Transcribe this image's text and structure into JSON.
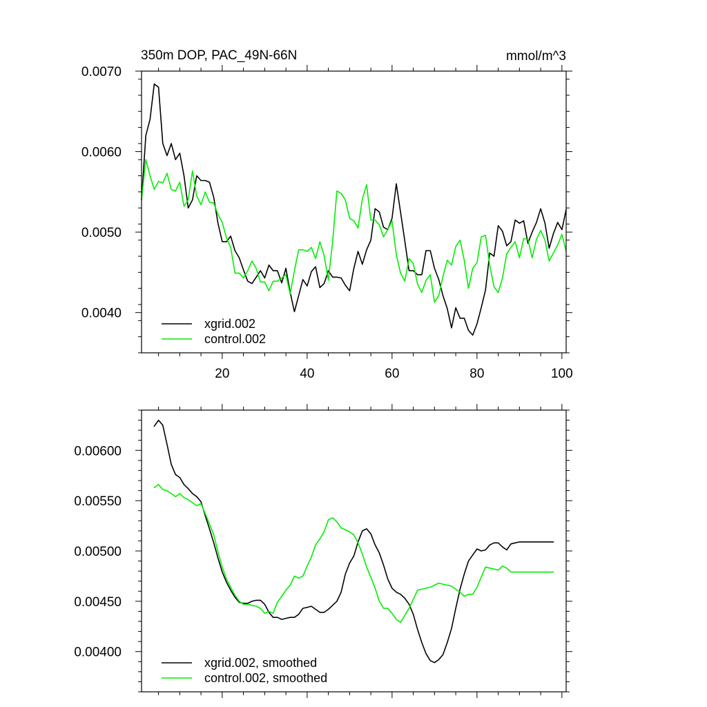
{
  "figure": {
    "title": "350m DOP, PAC_49N-66N",
    "units": "mmol/m^3"
  },
  "colors": {
    "xgrid": "#000000",
    "control": "#00ee00",
    "frame": "#000000",
    "background": "#ffffff"
  },
  "chart_data": [
    {
      "type": "line",
      "title": "350m DOP, PAC_49N-66N",
      "units_label": "mmol/m^3",
      "xlabel": "",
      "ylabel": "",
      "xlim": [
        1,
        101
      ],
      "ylim": [
        0.0035,
        0.007
      ],
      "xticks": [
        20,
        40,
        60,
        80,
        100
      ],
      "xtick_labels": [
        "20",
        "40",
        "60",
        "80",
        "100"
      ],
      "yticks": [
        0.004,
        0.005,
        0.006,
        0.007
      ],
      "ytick_labels": [
        "0.0040",
        "0.0050",
        "0.0060",
        "0.0070"
      ],
      "legend_position": "bottom-left",
      "series": [
        {
          "name": "xgrid.002",
          "color": "#000000",
          "x": [
            1,
            2,
            3,
            4,
            5,
            6,
            7,
            8,
            9,
            10,
            11,
            12,
            13,
            14,
            15,
            16,
            17,
            18,
            19,
            20,
            21,
            22,
            23,
            24,
            25,
            26,
            27,
            28,
            29,
            30,
            31,
            32,
            33,
            34,
            35,
            36,
            37,
            38,
            39,
            40,
            41,
            42,
            43,
            44,
            45,
            46,
            47,
            48,
            49,
            50,
            51,
            52,
            53,
            54,
            55,
            56,
            57,
            58,
            59,
            60,
            61,
            62,
            63,
            64,
            65,
            66,
            67,
            68,
            69,
            70,
            71,
            72,
            73,
            74,
            75,
            76,
            77,
            78,
            79,
            80,
            81,
            82,
            83,
            84,
            85,
            86,
            87,
            88,
            89,
            90,
            91,
            92,
            93,
            94,
            95,
            96,
            97,
            98,
            99,
            100,
            101
          ],
          "values": [
            0.0054,
            0.0062,
            0.0064,
            0.00684,
            0.0068,
            0.0061,
            0.00595,
            0.0061,
            0.0059,
            0.00598,
            0.0057,
            0.0053,
            0.0054,
            0.0057,
            0.00564,
            0.00564,
            0.00562,
            0.00543,
            0.00511,
            0.00488,
            0.00488,
            0.00495,
            0.00477,
            0.00468,
            0.00453,
            0.00439,
            0.00436,
            0.00444,
            0.00452,
            0.00443,
            0.00459,
            0.00452,
            0.00452,
            0.00437,
            0.00455,
            0.00425,
            0.00401,
            0.00421,
            0.00441,
            0.00433,
            0.00451,
            0.00457,
            0.00431,
            0.00436,
            0.00452,
            0.00444,
            0.00444,
            0.00443,
            0.00434,
            0.00427,
            0.00455,
            0.00476,
            0.0046,
            0.00478,
            0.0049,
            0.00529,
            0.00525,
            0.00506,
            0.00503,
            0.00517,
            0.0056,
            0.00525,
            0.00489,
            0.00452,
            0.00452,
            0.00447,
            0.00447,
            0.00477,
            0.00477,
            0.00455,
            0.00441,
            0.00421,
            0.00405,
            0.00381,
            0.00406,
            0.00393,
            0.00393,
            0.00378,
            0.00372,
            0.00386,
            0.00406,
            0.00428,
            0.00474,
            0.0047,
            0.00508,
            0.00501,
            0.00483,
            0.00488,
            0.00515,
            0.00511,
            0.00514,
            0.00486,
            0.005,
            0.00512,
            0.00529,
            0.00511,
            0.0048,
            0.00498,
            0.00512,
            0.00503,
            0.00528
          ]
        },
        {
          "name": "control.002",
          "color": "#00ee00",
          "x": [
            1,
            2,
            3,
            4,
            5,
            6,
            7,
            8,
            9,
            10,
            11,
            12,
            13,
            14,
            15,
            16,
            17,
            18,
            19,
            20,
            21,
            22,
            23,
            24,
            25,
            26,
            27,
            28,
            29,
            30,
            31,
            32,
            33,
            34,
            35,
            36,
            37,
            38,
            39,
            40,
            41,
            42,
            43,
            44,
            45,
            46,
            47,
            48,
            49,
            50,
            51,
            52,
            53,
            54,
            55,
            56,
            57,
            58,
            59,
            60,
            61,
            62,
            63,
            64,
            65,
            66,
            67,
            68,
            69,
            70,
            71,
            72,
            73,
            74,
            75,
            76,
            77,
            78,
            79,
            80,
            81,
            82,
            83,
            84,
            85,
            86,
            87,
            88,
            89,
            90,
            91,
            92,
            93,
            94,
            95,
            96,
            97,
            98,
            99,
            100,
            101
          ],
          "values": [
            0.0054,
            0.0059,
            0.0057,
            0.00553,
            0.00563,
            0.00561,
            0.00573,
            0.00553,
            0.00551,
            0.00562,
            0.00532,
            0.0054,
            0.00576,
            0.00545,
            0.00534,
            0.0055,
            0.00537,
            0.00536,
            0.00522,
            0.00512,
            0.00493,
            0.00481,
            0.00449,
            0.00449,
            0.00443,
            0.00452,
            0.00464,
            0.00455,
            0.00438,
            0.00438,
            0.00427,
            0.00439,
            0.00439,
            0.00443,
            0.00447,
            0.00423,
            0.00452,
            0.00478,
            0.00478,
            0.00476,
            0.00481,
            0.00467,
            0.00488,
            0.00471,
            0.0044,
            0.00488,
            0.00551,
            0.00548,
            0.0054,
            0.00517,
            0.00514,
            0.00505,
            0.00541,
            0.00559,
            0.00515,
            0.00515,
            0.00509,
            0.00494,
            0.00503,
            0.00514,
            0.00472,
            0.00449,
            0.00439,
            0.00467,
            0.00461,
            0.00435,
            0.00425,
            0.0044,
            0.00447,
            0.00413,
            0.00421,
            0.00445,
            0.00465,
            0.00459,
            0.00482,
            0.0049,
            0.00465,
            0.0043,
            0.00455,
            0.00462,
            0.00494,
            0.00496,
            0.00459,
            0.00432,
            0.00425,
            0.00443,
            0.00473,
            0.00481,
            0.00488,
            0.00468,
            0.00492,
            0.00491,
            0.00468,
            0.00491,
            0.00502,
            0.0049,
            0.00464,
            0.00474,
            0.00484,
            0.00497,
            0.00476
          ]
        }
      ]
    },
    {
      "type": "line",
      "title": "",
      "xlabel": "",
      "ylabel": "",
      "xlim": [
        1,
        101
      ],
      "ylim": [
        0.0036,
        0.0064
      ],
      "xticks": [
        20,
        40,
        60,
        80,
        100
      ],
      "xtick_labels": [],
      "yticks": [
        0.004,
        0.0045,
        0.005,
        0.0055,
        0.006
      ],
      "ytick_labels": [
        "0.00400",
        "0.00450",
        "0.00500",
        "0.00550",
        "0.00600"
      ],
      "legend_position": "bottom-left",
      "series": [
        {
          "name": "xgrid.002, smoothed",
          "color": "#000000",
          "x": [
            4,
            5,
            6,
            7,
            8,
            9,
            10,
            11,
            12,
            13,
            14,
            15,
            16,
            17,
            18,
            19,
            20,
            21,
            22,
            23,
            24,
            25,
            26,
            27,
            28,
            29,
            30,
            31,
            32,
            33,
            34,
            35,
            36,
            37,
            38,
            39,
            40,
            41,
            42,
            43,
            44,
            45,
            46,
            47,
            48,
            49,
            50,
            51,
            52,
            53,
            54,
            55,
            56,
            57,
            58,
            59,
            60,
            61,
            62,
            63,
            64,
            65,
            66,
            67,
            68,
            69,
            70,
            71,
            72,
            73,
            74,
            75,
            76,
            77,
            78,
            79,
            80,
            81,
            82,
            83,
            84,
            85,
            86,
            87,
            88,
            89,
            90,
            91,
            92,
            93,
            94,
            95,
            96,
            97,
            98
          ],
          "values": [
            0.00624,
            0.0063,
            0.00625,
            0.00606,
            0.00586,
            0.00576,
            0.00573,
            0.00566,
            0.00562,
            0.00557,
            0.00554,
            0.00549,
            0.00535,
            0.00522,
            0.00508,
            0.00493,
            0.00479,
            0.00469,
            0.00461,
            0.00454,
            0.00449,
            0.00448,
            0.00448,
            0.0045,
            0.00451,
            0.00451,
            0.00447,
            0.00439,
            0.00434,
            0.00434,
            0.00432,
            0.00433,
            0.00434,
            0.00434,
            0.00437,
            0.00443,
            0.00444,
            0.00445,
            0.00442,
            0.00439,
            0.00439,
            0.00442,
            0.00446,
            0.0045,
            0.00459,
            0.00477,
            0.00488,
            0.00495,
            0.00509,
            0.0052,
            0.00522,
            0.00517,
            0.00506,
            0.00498,
            0.00486,
            0.00472,
            0.00463,
            0.00459,
            0.00457,
            0.00453,
            0.00447,
            0.00437,
            0.00422,
            0.00409,
            0.00398,
            0.00391,
            0.00389,
            0.00392,
            0.00397,
            0.00409,
            0.00423,
            0.00443,
            0.00462,
            0.00477,
            0.0049,
            0.00496,
            0.00502,
            0.005,
            0.00501,
            0.00506,
            0.00508,
            0.00508,
            0.00504,
            0.00501,
            0.00507,
            0.00508,
            0.00509,
            0.00509,
            0.00509,
            0.00509,
            0.00509,
            0.00509,
            0.00509,
            0.00509,
            0.00509
          ]
        },
        {
          "name": "control.002, smoothed",
          "color": "#00ee00",
          "x": [
            4,
            5,
            6,
            7,
            8,
            9,
            10,
            11,
            12,
            13,
            14,
            15,
            16,
            17,
            18,
            19,
            20,
            21,
            22,
            23,
            24,
            25,
            26,
            27,
            28,
            29,
            30,
            31,
            32,
            33,
            34,
            35,
            36,
            37,
            38,
            39,
            40,
            41,
            42,
            43,
            44,
            45,
            46,
            47,
            48,
            49,
            50,
            51,
            52,
            53,
            54,
            55,
            56,
            57,
            58,
            59,
            60,
            61,
            62,
            63,
            64,
            65,
            66,
            67,
            68,
            69,
            70,
            71,
            72,
            73,
            74,
            75,
            76,
            77,
            78,
            79,
            80,
            81,
            82,
            83,
            84,
            85,
            86,
            87,
            88,
            89,
            90,
            91,
            92,
            93,
            94,
            95,
            96,
            97,
            98
          ],
          "values": [
            0.00563,
            0.00566,
            0.00561,
            0.0056,
            0.00557,
            0.00554,
            0.00557,
            0.00553,
            0.00551,
            0.00548,
            0.00545,
            0.00547,
            0.00537,
            0.00527,
            0.00516,
            0.00499,
            0.00484,
            0.00472,
            0.00464,
            0.00456,
            0.0045,
            0.00447,
            0.00447,
            0.00446,
            0.00445,
            0.00443,
            0.00438,
            0.0044,
            0.00438,
            0.00449,
            0.00455,
            0.00461,
            0.00466,
            0.00475,
            0.00473,
            0.00475,
            0.00485,
            0.00494,
            0.00506,
            0.00512,
            0.00519,
            0.00531,
            0.00533,
            0.00529,
            0.00523,
            0.00521,
            0.00519,
            0.00516,
            0.00508,
            0.00497,
            0.00484,
            0.00474,
            0.00463,
            0.0045,
            0.00443,
            0.00443,
            0.00438,
            0.00432,
            0.00429,
            0.00436,
            0.00443,
            0.00452,
            0.00461,
            0.00462,
            0.00463,
            0.00464,
            0.00466,
            0.00468,
            0.00467,
            0.00466,
            0.00465,
            0.00462,
            0.00459,
            0.00455,
            0.00457,
            0.00457,
            0.00464,
            0.00474,
            0.00484,
            0.00483,
            0.00482,
            0.00481,
            0.00485,
            0.00483,
            0.00479,
            0.00479,
            0.00479,
            0.00479,
            0.00479,
            0.00479,
            0.00479,
            0.00479,
            0.00479,
            0.00479,
            0.00479
          ]
        }
      ]
    }
  ]
}
